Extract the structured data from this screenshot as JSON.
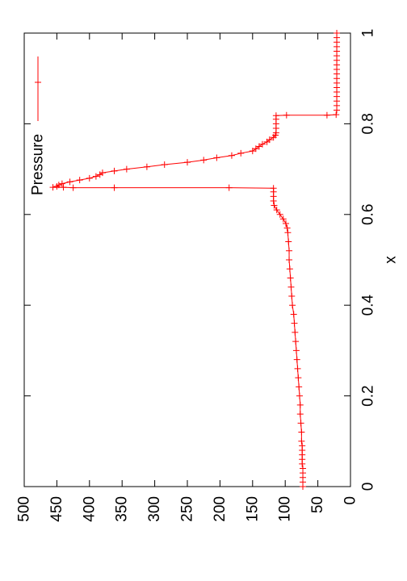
{
  "chart_data": {
    "type": "line",
    "title": "",
    "xlabel": "x",
    "ylabel": "",
    "xlim": [
      0,
      1
    ],
    "ylim": [
      0,
      500
    ],
    "x_ticks": [
      0,
      0.2,
      0.4,
      0.6,
      0.8,
      1
    ],
    "x_tick_labels": [
      "0",
      "0.2",
      "0.4",
      "0.6",
      "0.8",
      "1"
    ],
    "y_ticks": [
      0,
      50,
      100,
      150,
      200,
      250,
      300,
      350,
      400,
      450,
      500
    ],
    "y_tick_labels": [
      "0",
      "50",
      "100",
      "150",
      "200",
      "250",
      "300",
      "350",
      "400",
      "450",
      "500"
    ],
    "rotation": "rotated 90 degrees counter-clockwise",
    "grid": false,
    "legend": {
      "position": "top-right",
      "entries": [
        "Pressure"
      ]
    },
    "series": [
      {
        "name": "Pressure",
        "color": "#ff0000",
        "marker": "plus",
        "points": [
          [
            0.0,
            73
          ],
          [
            0.01,
            73
          ],
          [
            0.02,
            73
          ],
          [
            0.03,
            73
          ],
          [
            0.04,
            73
          ],
          [
            0.05,
            74
          ],
          [
            0.06,
            74
          ],
          [
            0.07,
            74
          ],
          [
            0.08,
            74
          ],
          [
            0.09,
            74
          ],
          [
            0.1,
            75
          ],
          [
            0.12,
            75
          ],
          [
            0.14,
            76
          ],
          [
            0.16,
            77
          ],
          [
            0.18,
            77
          ],
          [
            0.2,
            78
          ],
          [
            0.22,
            79
          ],
          [
            0.24,
            80
          ],
          [
            0.26,
            81
          ],
          [
            0.28,
            82
          ],
          [
            0.3,
            83
          ],
          [
            0.32,
            84
          ],
          [
            0.34,
            85
          ],
          [
            0.36,
            86
          ],
          [
            0.38,
            87
          ],
          [
            0.4,
            89
          ],
          [
            0.42,
            90
          ],
          [
            0.44,
            91
          ],
          [
            0.46,
            92
          ],
          [
            0.48,
            93
          ],
          [
            0.5,
            94
          ],
          [
            0.52,
            94
          ],
          [
            0.54,
            95
          ],
          [
            0.56,
            96
          ],
          [
            0.57,
            97
          ],
          [
            0.58,
            99
          ],
          [
            0.59,
            103
          ],
          [
            0.6,
            108
          ],
          [
            0.61,
            113
          ],
          [
            0.62,
            117
          ],
          [
            0.63,
            118
          ],
          [
            0.64,
            118
          ],
          [
            0.65,
            118
          ],
          [
            0.658,
            118
          ],
          [
            0.659,
            186
          ],
          [
            0.659,
            362
          ],
          [
            0.659,
            425
          ],
          [
            0.66,
            440
          ],
          [
            0.66,
            456
          ],
          [
            0.662,
            450
          ],
          [
            0.665,
            447
          ],
          [
            0.668,
            442
          ],
          [
            0.672,
            430
          ],
          [
            0.676,
            415
          ],
          [
            0.68,
            400
          ],
          [
            0.684,
            390
          ],
          [
            0.688,
            384
          ],
          [
            0.692,
            380
          ],
          [
            0.696,
            362
          ],
          [
            0.7,
            343
          ],
          [
            0.705,
            312
          ],
          [
            0.71,
            285
          ],
          [
            0.715,
            250
          ],
          [
            0.72,
            225
          ],
          [
            0.725,
            205
          ],
          [
            0.73,
            182
          ],
          [
            0.735,
            168
          ],
          [
            0.74,
            150
          ],
          [
            0.745,
            145
          ],
          [
            0.75,
            140
          ],
          [
            0.755,
            135
          ],
          [
            0.76,
            128
          ],
          [
            0.765,
            124
          ],
          [
            0.77,
            118
          ],
          [
            0.775,
            115
          ],
          [
            0.78,
            114
          ],
          [
            0.79,
            114
          ],
          [
            0.8,
            114
          ],
          [
            0.81,
            114
          ],
          [
            0.818,
            114
          ],
          [
            0.819,
            98
          ],
          [
            0.819,
            36
          ],
          [
            0.82,
            22
          ],
          [
            0.83,
            21
          ],
          [
            0.84,
            21
          ],
          [
            0.85,
            21
          ],
          [
            0.86,
            21
          ],
          [
            0.87,
            21
          ],
          [
            0.88,
            21
          ],
          [
            0.89,
            21
          ],
          [
            0.9,
            21
          ],
          [
            0.91,
            21
          ],
          [
            0.92,
            21
          ],
          [
            0.93,
            21
          ],
          [
            0.94,
            21
          ],
          [
            0.95,
            21
          ],
          [
            0.96,
            21
          ],
          [
            0.97,
            21
          ],
          [
            0.98,
            21
          ],
          [
            0.99,
            21
          ],
          [
            1.0,
            21
          ]
        ]
      }
    ]
  }
}
